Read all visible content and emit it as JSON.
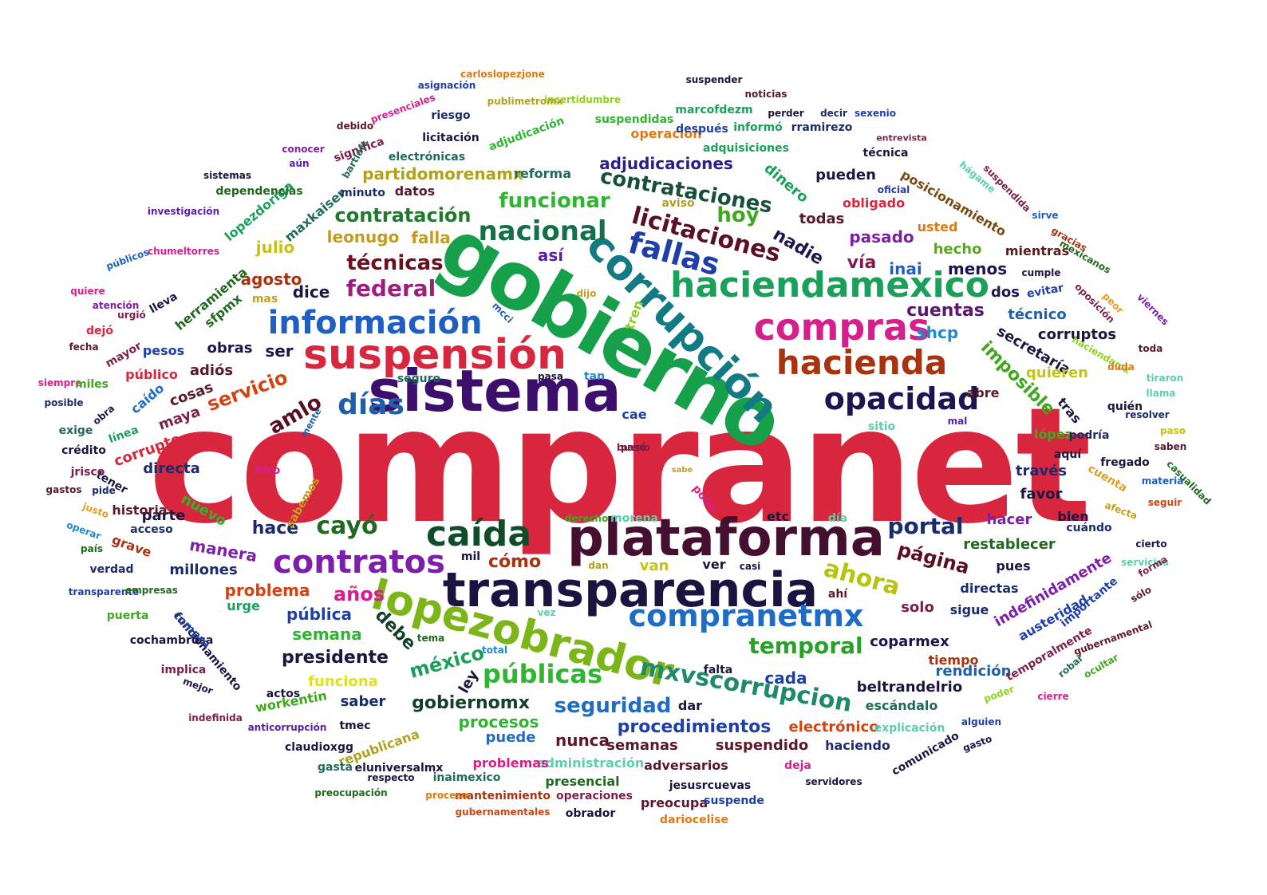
{
  "words": [
    {
      "text": "compranet",
      "color": "#d7263d"
    },
    {
      "text": "gobierno",
      "color": "#16a04a"
    },
    {
      "text": "sistema",
      "color": "#3b0f6b"
    },
    {
      "text": "plataforma",
      "color": "#45102f"
    },
    {
      "text": "transparencia",
      "color": "#1b1440"
    },
    {
      "text": "corrupción",
      "color": "#127a82"
    },
    {
      "text": "suspensión",
      "color": "#d7263d"
    },
    {
      "text": "información",
      "color": "#1f5fc4"
    },
    {
      "text": "compras",
      "color": "#d61f8d"
    },
    {
      "text": "haciendamexico",
      "color": "#1aa05a"
    },
    {
      "text": "hacienda",
      "color": "#a83310"
    },
    {
      "text": "lopezobrador",
      "color": "#7cb518"
    },
    {
      "text": "caída",
      "color": "#0f4d2a"
    },
    {
      "text": "contratos",
      "color": "#7d1fa8"
    },
    {
      "text": "opacidad",
      "color": "#1b1650"
    },
    {
      "text": "compranetmx",
      "color": "#1f6cc4"
    },
    {
      "text": "fallas",
      "color": "#1f3fa8"
    },
    {
      "text": "días",
      "color": "#1f5fa8"
    },
    {
      "text": "nacional",
      "color": "#15704a"
    },
    {
      "text": "licitaciones",
      "color": "#5a0f25"
    },
    {
      "text": "contrataciones",
      "color": "#16503c"
    },
    {
      "text": "contratación",
      "color": "#1f7a2a"
    },
    {
      "text": "funcionar",
      "color": "#2fb52f"
    },
    {
      "text": "federal",
      "color": "#9b1f7a"
    },
    {
      "text": "técnicas",
      "color": "#6a1020"
    },
    {
      "text": "hoy",
      "color": "#3fa81f"
    },
    {
      "text": "amlo",
      "color": "#5a0f20"
    },
    {
      "text": "servicio",
      "color": "#d04515"
    },
    {
      "text": "temporal",
      "color": "#2aa02a"
    },
    {
      "text": "públicas",
      "color": "#2fb52f"
    },
    {
      "text": "ahora",
      "color": "#b5c40f"
    },
    {
      "text": "mxvscorrupcion",
      "color": "#1f8a6a"
    },
    {
      "text": "portal",
      "color": "#1b2c6b"
    },
    {
      "text": "página",
      "color": "#5a0f20"
    },
    {
      "text": "cayó",
      "color": "#1f6a1f"
    },
    {
      "text": "hace",
      "color": "#1b2c6b"
    },
    {
      "text": "cuentas",
      "color": "#5a1a6b"
    },
    {
      "text": "imposible",
      "color": "#3fa81f"
    },
    {
      "text": "seguridad",
      "color": "#1f6cc4"
    },
    {
      "text": "procedimientos",
      "color": "#1f3fa8"
    },
    {
      "text": "gobiernomx",
      "color": "#123f2a"
    },
    {
      "text": "adjudicaciones",
      "color": "#2a1f8a"
    },
    {
      "text": "partidomorenamx",
      "color": "#b0a01f"
    },
    {
      "text": "leonugo",
      "color": "#c49a1f"
    },
    {
      "text": "falla",
      "color": "#c49a1f"
    },
    {
      "text": "así",
      "color": "#5a1fa8"
    },
    {
      "text": "nadie",
      "color": "#1b1650"
    },
    {
      "text": "todas",
      "color": "#5a1a2a"
    },
    {
      "text": "pasado",
      "color": "#7d1fa8"
    },
    {
      "text": "vía",
      "color": "#7d1f4a"
    },
    {
      "text": "inai",
      "color": "#1f5fc4"
    },
    {
      "text": "menos",
      "color": "#1b1650"
    },
    {
      "text": "shcp",
      "color": "#1f8ad0"
    },
    {
      "text": "secretaría",
      "color": "#1b1640"
    },
    {
      "text": "quieren",
      "color": "#c4c40f"
    },
    {
      "text": "técnico",
      "color": "#1f5fa8"
    },
    {
      "text": "corruptos",
      "color": "#1b1640"
    },
    {
      "text": "dos",
      "color": "#1b1650"
    },
    {
      "text": "hecho",
      "color": "#5aa81f"
    },
    {
      "text": "mientras",
      "color": "#5a1a1a"
    },
    {
      "text": "posicionamiento",
      "color": "#7a4a10"
    },
    {
      "text": "pueden",
      "color": "#1b1640"
    },
    {
      "text": "obligado",
      "color": "#d7263d"
    },
    {
      "text": "usted",
      "color": "#e07a10"
    },
    {
      "text": "dinero",
      "color": "#1aa05a"
    },
    {
      "text": "aviso",
      "color": "#b0a01f"
    },
    {
      "text": "tren",
      "color": "#8fd01f"
    },
    {
      "text": "ser",
      "color": "#1b1640"
    },
    {
      "text": "dice",
      "color": "#1b1640"
    },
    {
      "text": "agosto",
      "color": "#a83310"
    },
    {
      "text": "julio",
      "color": "#c4c40f"
    },
    {
      "text": "mas",
      "color": "#c4a01f"
    },
    {
      "text": "obras",
      "color": "#1b1650"
    },
    {
      "text": "adiós",
      "color": "#5a1a2a"
    },
    {
      "text": "cosas",
      "color": "#5a1a2a"
    },
    {
      "text": "maya",
      "color": "#7d1f4a"
    },
    {
      "text": "directa",
      "color": "#1b2c6b"
    },
    {
      "text": "nuevo",
      "color": "#2fb52f"
    },
    {
      "text": "parte",
      "color": "#1b1640"
    },
    {
      "text": "manera",
      "color": "#7d1fa8"
    },
    {
      "text": "millones",
      "color": "#1b2c6b"
    },
    {
      "text": "problema",
      "color": "#d04515"
    },
    {
      "text": "años",
      "color": "#d61f8d"
    },
    {
      "text": "pública",
      "color": "#1f3fa8"
    },
    {
      "text": "debe",
      "color": "#123f2a"
    },
    {
      "text": "cómo",
      "color": "#a83310"
    },
    {
      "text": "van",
      "color": "#c4c40f"
    },
    {
      "text": "ver",
      "color": "#1b1640"
    },
    {
      "text": "casi",
      "color": "#1b1640"
    },
    {
      "text": "semana",
      "color": "#2fb52f"
    },
    {
      "text": "presidente",
      "color": "#1b1640"
    },
    {
      "text": "urge",
      "color": "#1aa05a"
    },
    {
      "text": "méxico",
      "color": "#1aa05a"
    },
    {
      "text": "funciona",
      "color": "#e0e01f"
    },
    {
      "text": "ley",
      "color": "#1b1640"
    },
    {
      "text": "saber",
      "color": "#1b2c6b"
    },
    {
      "text": "procesos",
      "color": "#2fb52f"
    },
    {
      "text": "puede",
      "color": "#1f6cc4"
    },
    {
      "text": "nunca",
      "color": "#5a1a2a"
    },
    {
      "text": "semanas",
      "color": "#5a1a2a"
    },
    {
      "text": "suspendido",
      "color": "#5a1a2a"
    },
    {
      "text": "haciendo",
      "color": "#1b2c6b"
    },
    {
      "text": "electrónico",
      "color": "#d04515"
    },
    {
      "text": "escándalo",
      "color": "#1f6a5a"
    },
    {
      "text": "beltrandelrio",
      "color": "#1b1640"
    },
    {
      "text": "rendición",
      "color": "#1f5fa8"
    },
    {
      "text": "cada",
      "color": "#1f3fa8"
    },
    {
      "text": "falta",
      "color": "#1b1640"
    },
    {
      "text": "coparmex",
      "color": "#1b1650"
    },
    {
      "text": "tiempo",
      "color": "#a83310"
    },
    {
      "text": "solo",
      "color": "#7d1f4a"
    },
    {
      "text": "sigue",
      "color": "#1b2c6b"
    },
    {
      "text": "directas",
      "color": "#1b2c6b"
    },
    {
      "text": "pues",
      "color": "#1b1640"
    },
    {
      "text": "restablecer",
      "color": "#1f6a1f"
    },
    {
      "text": "hacer",
      "color": "#7d1fa8"
    },
    {
      "text": "bien",
      "color": "#1b1640"
    },
    {
      "text": "cuándo",
      "color": "#1b2c6b"
    },
    {
      "text": "favor",
      "color": "#1b1640"
    },
    {
      "text": "través",
      "color": "#1b2c6b"
    },
    {
      "text": "aquí",
      "color": "#1b1640"
    },
    {
      "text": "lópez",
      "color": "#3fa81f"
    },
    {
      "text": "podría",
      "color": "#1b2c6b"
    },
    {
      "text": "tras",
      "color": "#1b1640"
    },
    {
      "text": "quién",
      "color": "#1b1640"
    },
    {
      "text": "fregado",
      "color": "#1b1640"
    },
    {
      "text": "cuenta",
      "color": "#e0a01f"
    },
    {
      "text": "indefinidamente",
      "color": "#7d1fa8"
    },
    {
      "text": "austeridad",
      "color": "#1f3fa8"
    },
    {
      "text": "temporalmente",
      "color": "#7d1f4a"
    },
    {
      "text": "abre",
      "color": "#5a1a2a"
    },
    {
      "text": "sitio",
      "color": "#5ad0a8"
    },
    {
      "text": "mal",
      "color": "#5a1fa8"
    },
    {
      "text": "historia",
      "color": "#5a1a2a"
    },
    {
      "text": "acceso",
      "color": "#1b2c6b"
    },
    {
      "text": "grave",
      "color": "#a83310"
    },
    {
      "text": "tener",
      "color": "#1b1640"
    },
    {
      "text": "pide",
      "color": "#1b2c6b"
    },
    {
      "text": "corrupto",
      "color": "#d7263d"
    },
    {
      "text": "caído",
      "color": "#1f6cc4"
    },
    {
      "text": "obra",
      "color": "#1b1640"
    },
    {
      "text": "línea",
      "color": "#1aa05a"
    },
    {
      "text": "público",
      "color": "#d7263d"
    },
    {
      "text": "pesos",
      "color": "#1f3fa8"
    },
    {
      "text": "mayor",
      "color": "#7d1f4a"
    },
    {
      "text": "herramienta",
      "color": "#1f6a1f"
    },
    {
      "text": "sfpmx",
      "color": "#1f6a1f"
    },
    {
      "text": "lopezdoriga",
      "color": "#1aa05a"
    },
    {
      "text": "maxkaiser",
      "color": "#1f6a5a"
    },
    {
      "text": "dependencias",
      "color": "#1f6a1f"
    },
    {
      "text": "minuto",
      "color": "#1b2c6b"
    },
    {
      "text": "datos",
      "color": "#5a1a2a"
    },
    {
      "text": "reforma",
      "color": "#1f6a5a"
    },
    {
      "text": "electrónicas",
      "color": "#1f6a5a"
    },
    {
      "text": "licitación",
      "color": "#1b1640"
    },
    {
      "text": "adjudicación",
      "color": "#2fb52f"
    },
    {
      "text": "operación",
      "color": "#e07a10"
    },
    {
      "text": "después",
      "color": "#1f3fa8"
    },
    {
      "text": "informó",
      "color": "#1aa05a"
    },
    {
      "text": "rramirezo",
      "color": "#1b2c6b"
    },
    {
      "text": "adquisiciones",
      "color": "#1aa05a"
    },
    {
      "text": "suspendidas",
      "color": "#2fb52f"
    },
    {
      "text": "marcofdezm",
      "color": "#1aa05a"
    },
    {
      "text": "perder",
      "color": "#1b1640"
    },
    {
      "text": "decir",
      "color": "#1b2c6b"
    },
    {
      "text": "sexenio",
      "color": "#1f3fa8"
    },
    {
      "text": "noticias",
      "color": "#5a1a2a"
    },
    {
      "text": "suspender",
      "color": "#1b1640"
    },
    {
      "text": "incertidumbre",
      "color": "#8fd01f"
    },
    {
      "text": "carloslopezjone",
      "color": "#e07a10"
    },
    {
      "text": "asignación",
      "color": "#1f3fa8"
    },
    {
      "text": "publimetromx",
      "color": "#b0a01f"
    },
    {
      "text": "riesgo",
      "color": "#1b2c6b"
    },
    {
      "text": "presenciales",
      "color": "#d61f8d"
    },
    {
      "text": "debido",
      "color": "#5a1a2a"
    },
    {
      "text": "significa",
      "color": "#7d1f4a"
    },
    {
      "text": "conocer",
      "color": "#7d1fa8"
    },
    {
      "text": "bartlett",
      "color": "#1f6a5a"
    },
    {
      "text": "aún",
      "color": "#5a1fa8"
    },
    {
      "text": "sistemas",
      "color": "#1b1640"
    },
    {
      "text": "entrevista",
      "color": "#7d1f4a"
    },
    {
      "text": "técnica",
      "color": "#1b1640"
    },
    {
      "text": "hágame",
      "color": "#5ad0a8"
    },
    {
      "text": "suspendida",
      "color": "#7d1f4a"
    },
    {
      "text": "oficial",
      "color": "#1f3fa8"
    },
    {
      "text": "sirve",
      "color": "#1f5fc4"
    },
    {
      "text": "gracias",
      "color": "#a83310"
    },
    {
      "text": "mexicanos",
      "color": "#1f6a1f"
    },
    {
      "text": "cumple",
      "color": "#1b1640"
    },
    {
      "text": "evitar",
      "color": "#1f3fa8"
    },
    {
      "text": "peor",
      "color": "#e0a01f"
    },
    {
      "text": "oposición",
      "color": "#7d1f4a"
    },
    {
      "text": "viernes",
      "color": "#7d1fa8"
    },
    {
      "text": "haciendamx",
      "color": "#8fd01f"
    },
    {
      "text": "duda",
      "color": "#e07a10"
    },
    {
      "text": "toda",
      "color": "#5a1a2a"
    },
    {
      "text": "tiraron",
      "color": "#5ad0a8"
    },
    {
      "text": "llama",
      "color": "#5ad0a8"
    },
    {
      "text": "resolver",
      "color": "#1b2c6b"
    },
    {
      "text": "paso",
      "color": "#c4c40f"
    },
    {
      "text": "saben",
      "color": "#5a1a2a"
    },
    {
      "text": "materia",
      "color": "#1f5fc4"
    },
    {
      "text": "casualidad",
      "color": "#1f6a1f"
    },
    {
      "text": "seguir",
      "color": "#d04515"
    },
    {
      "text": "afecta",
      "color": "#c4a01f"
    },
    {
      "text": "cierto",
      "color": "#1b1640"
    },
    {
      "text": "servicios",
      "color": "#5ad0a8"
    },
    {
      "text": "forma",
      "color": "#7d1f4a"
    },
    {
      "text": "sólo",
      "color": "#5a1a2a"
    },
    {
      "text": "importante",
      "color": "#1f3fa8"
    },
    {
      "text": "gubernamental",
      "color": "#5a1a2a"
    },
    {
      "text": "robar",
      "color": "#1f6a5a"
    },
    {
      "text": "ocultar",
      "color": "#3fa81f"
    },
    {
      "text": "poder",
      "color": "#8fd01f"
    },
    {
      "text": "cierre",
      "color": "#d61f8d"
    },
    {
      "text": "alguien",
      "color": "#1f3fa8"
    },
    {
      "text": "comunicado",
      "color": "#1b1640"
    },
    {
      "text": "gasto",
      "color": "#1b1640"
    },
    {
      "text": "explicación",
      "color": "#5ad0a8"
    },
    {
      "text": "servidores",
      "color": "#1b1640"
    },
    {
      "text": "deja",
      "color": "#d61f8d"
    },
    {
      "text": "jesusrcuevas",
      "color": "#1b1640"
    },
    {
      "text": "adversarios",
      "color": "#5a1a2a"
    },
    {
      "text": "administración",
      "color": "#5ad0a8"
    },
    {
      "text": "presencial",
      "color": "#1f6a1f"
    },
    {
      "text": "problemas",
      "color": "#d61f8d"
    },
    {
      "text": "inaimexico",
      "color": "#1f6a5a"
    },
    {
      "text": "eluniversalmx",
      "color": "#1b1640"
    },
    {
      "text": "republicana",
      "color": "#b0a01f"
    },
    {
      "text": "tmec",
      "color": "#1b1640"
    },
    {
      "text": "preocupa",
      "color": "#5a1a2a"
    },
    {
      "text": "suspende",
      "color": "#1f3fa8"
    },
    {
      "text": "operaciones",
      "color": "#7d1f4a"
    },
    {
      "text": "mantenimiento",
      "color": "#a83310"
    },
    {
      "text": "obrador",
      "color": "#1b1640"
    },
    {
      "text": "dariocelise",
      "color": "#e07a10"
    },
    {
      "text": "proceso",
      "color": "#e07a10"
    },
    {
      "text": "gubernamentales",
      "color": "#d04515"
    },
    {
      "text": "respecto",
      "color": "#1b1640"
    },
    {
      "text": "preocupación",
      "color": "#1f6a1f"
    },
    {
      "text": "gasta",
      "color": "#1f6a5a"
    },
    {
      "text": "claudioxgg",
      "color": "#1b1640"
    },
    {
      "text": "anticorrupción",
      "color": "#5a1fa8"
    },
    {
      "text": "workentin",
      "color": "#3fa81f"
    },
    {
      "text": "actos",
      "color": "#1b1640"
    },
    {
      "text": "indefinida",
      "color": "#7d1f4a"
    },
    {
      "text": "mejor",
      "color": "#1b1640"
    },
    {
      "text": "implica",
      "color": "#7d1f4a"
    },
    {
      "text": "cochambrosa",
      "color": "#1b1640"
    },
    {
      "text": "funcionamiento",
      "color": "#1b1640"
    },
    {
      "text": "compra",
      "color": "#1f3fa8"
    },
    {
      "text": "puerta",
      "color": "#3fa81f"
    },
    {
      "text": "transparente",
      "color": "#1f3fa8"
    },
    {
      "text": "empresas",
      "color": "#1f6a1f"
    },
    {
      "text": "verdad",
      "color": "#1b2c6b"
    },
    {
      "text": "país",
      "color": "#1f6a1f"
    },
    {
      "text": "operar",
      "color": "#1f8ad0"
    },
    {
      "text": "justo",
      "color": "#e0a01f"
    },
    {
      "text": "gastos",
      "color": "#5a1a2a"
    },
    {
      "text": "jrisco",
      "color": "#7d1f4a"
    },
    {
      "text": "crédito",
      "color": "#1b1640"
    },
    {
      "text": "exige",
      "color": "#1f6a5a"
    },
    {
      "text": "posible",
      "color": "#1b2c6b"
    },
    {
      "text": "siempre",
      "color": "#d61f8d"
    },
    {
      "text": "miles",
      "color": "#3fa81f"
    },
    {
      "text": "fecha",
      "color": "#5a1a2a"
    },
    {
      "text": "dejó",
      "color": "#d7263d"
    },
    {
      "text": "quiere",
      "color": "#d61f8d"
    },
    {
      "text": "atención",
      "color": "#7d1fa8"
    },
    {
      "text": "urgió",
      "color": "#7d1f4a"
    },
    {
      "text": "lleva",
      "color": "#1b1640"
    },
    {
      "text": "públicos",
      "color": "#1f5fc4"
    },
    {
      "text": "chumeltorres",
      "color": "#d61f8d"
    },
    {
      "text": "investigación",
      "color": "#5a1fa8"
    },
    {
      "text": "sabemos",
      "color": "#c4a01f"
    },
    {
      "text": "seguro",
      "color": "#1f6a5a"
    },
    {
      "text": "tan",
      "color": "#1f8ad0"
    },
    {
      "text": "pasa",
      "color": "#1b1640"
    },
    {
      "text": "cae",
      "color": "#1f3fa8"
    },
    {
      "text": "mente",
      "color": "#1f5fa8"
    },
    {
      "text": "hizo",
      "color": "#d61f8d"
    },
    {
      "text": "sabe",
      "color": "#c4a01f"
    },
    {
      "text": "pone",
      "color": "#d61f8d"
    },
    {
      "text": "etc",
      "color": "#1b1640"
    },
    {
      "text": "día",
      "color": "#5ad0a8"
    },
    {
      "text": "morena",
      "color": "#5ad0a8"
    },
    {
      "text": "derecho",
      "color": "#3fa81f"
    },
    {
      "text": "mil",
      "color": "#1b1640"
    },
    {
      "text": "dan",
      "color": "#b0a01f"
    },
    {
      "text": "ahí",
      "color": "#5a1a2a"
    },
    {
      "text": "vez",
      "color": "#5ad0a8"
    },
    {
      "text": "tema",
      "color": "#1f6a1f"
    },
    {
      "text": "total",
      "color": "#1f8ad0"
    },
    {
      "text": "dar",
      "color": "#1b1640"
    },
    {
      "text": "dijo",
      "color": "#c4a01f"
    },
    {
      "text": "mcci",
      "color": "#1f5fc4"
    },
    {
      "text": "pasó",
      "color": "#5a1a2a"
    },
    {
      "text": "bueno",
      "color": "#7d1f4a"
    }
  ]
}
